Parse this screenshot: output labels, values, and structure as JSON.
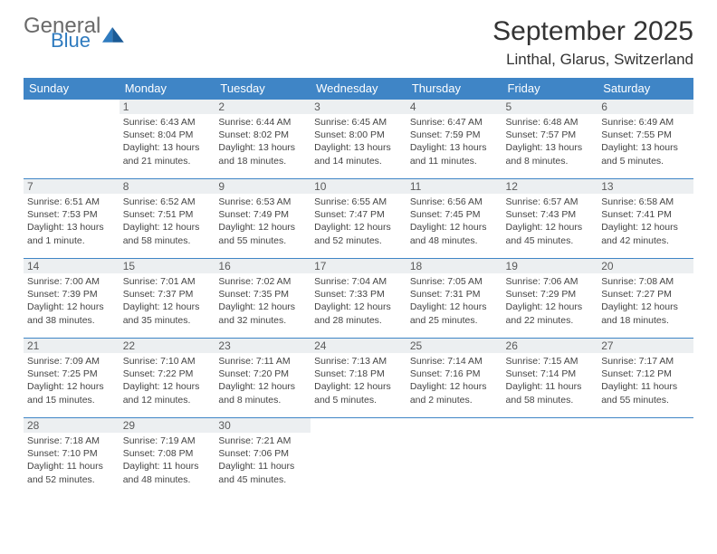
{
  "logo": {
    "text1": "General",
    "text2": "Blue"
  },
  "title": "September 2025",
  "location": "Linthal, Glarus, Switzerland",
  "colors": {
    "header_bg": "#3f85c6",
    "header_text": "#ffffff",
    "daynum_bg": "#eceff1",
    "border": "#3f85c6",
    "logo_gray": "#6a6a6a",
    "logo_blue": "#2f7bbf"
  },
  "weekdays": [
    "Sunday",
    "Monday",
    "Tuesday",
    "Wednesday",
    "Thursday",
    "Friday",
    "Saturday"
  ],
  "weeks": [
    [
      null,
      {
        "n": "1",
        "sr": "6:43 AM",
        "ss": "8:04 PM",
        "dl": "13 hours and 21 minutes."
      },
      {
        "n": "2",
        "sr": "6:44 AM",
        "ss": "8:02 PM",
        "dl": "13 hours and 18 minutes."
      },
      {
        "n": "3",
        "sr": "6:45 AM",
        "ss": "8:00 PM",
        "dl": "13 hours and 14 minutes."
      },
      {
        "n": "4",
        "sr": "6:47 AM",
        "ss": "7:59 PM",
        "dl": "13 hours and 11 minutes."
      },
      {
        "n": "5",
        "sr": "6:48 AM",
        "ss": "7:57 PM",
        "dl": "13 hours and 8 minutes."
      },
      {
        "n": "6",
        "sr": "6:49 AM",
        "ss": "7:55 PM",
        "dl": "13 hours and 5 minutes."
      }
    ],
    [
      {
        "n": "7",
        "sr": "6:51 AM",
        "ss": "7:53 PM",
        "dl": "13 hours and 1 minute."
      },
      {
        "n": "8",
        "sr": "6:52 AM",
        "ss": "7:51 PM",
        "dl": "12 hours and 58 minutes."
      },
      {
        "n": "9",
        "sr": "6:53 AM",
        "ss": "7:49 PM",
        "dl": "12 hours and 55 minutes."
      },
      {
        "n": "10",
        "sr": "6:55 AM",
        "ss": "7:47 PM",
        "dl": "12 hours and 52 minutes."
      },
      {
        "n": "11",
        "sr": "6:56 AM",
        "ss": "7:45 PM",
        "dl": "12 hours and 48 minutes."
      },
      {
        "n": "12",
        "sr": "6:57 AM",
        "ss": "7:43 PM",
        "dl": "12 hours and 45 minutes."
      },
      {
        "n": "13",
        "sr": "6:58 AM",
        "ss": "7:41 PM",
        "dl": "12 hours and 42 minutes."
      }
    ],
    [
      {
        "n": "14",
        "sr": "7:00 AM",
        "ss": "7:39 PM",
        "dl": "12 hours and 38 minutes."
      },
      {
        "n": "15",
        "sr": "7:01 AM",
        "ss": "7:37 PM",
        "dl": "12 hours and 35 minutes."
      },
      {
        "n": "16",
        "sr": "7:02 AM",
        "ss": "7:35 PM",
        "dl": "12 hours and 32 minutes."
      },
      {
        "n": "17",
        "sr": "7:04 AM",
        "ss": "7:33 PM",
        "dl": "12 hours and 28 minutes."
      },
      {
        "n": "18",
        "sr": "7:05 AM",
        "ss": "7:31 PM",
        "dl": "12 hours and 25 minutes."
      },
      {
        "n": "19",
        "sr": "7:06 AM",
        "ss": "7:29 PM",
        "dl": "12 hours and 22 minutes."
      },
      {
        "n": "20",
        "sr": "7:08 AM",
        "ss": "7:27 PM",
        "dl": "12 hours and 18 minutes."
      }
    ],
    [
      {
        "n": "21",
        "sr": "7:09 AM",
        "ss": "7:25 PM",
        "dl": "12 hours and 15 minutes."
      },
      {
        "n": "22",
        "sr": "7:10 AM",
        "ss": "7:22 PM",
        "dl": "12 hours and 12 minutes."
      },
      {
        "n": "23",
        "sr": "7:11 AM",
        "ss": "7:20 PM",
        "dl": "12 hours and 8 minutes."
      },
      {
        "n": "24",
        "sr": "7:13 AM",
        "ss": "7:18 PM",
        "dl": "12 hours and 5 minutes."
      },
      {
        "n": "25",
        "sr": "7:14 AM",
        "ss": "7:16 PM",
        "dl": "12 hours and 2 minutes."
      },
      {
        "n": "26",
        "sr": "7:15 AM",
        "ss": "7:14 PM",
        "dl": "11 hours and 58 minutes."
      },
      {
        "n": "27",
        "sr": "7:17 AM",
        "ss": "7:12 PM",
        "dl": "11 hours and 55 minutes."
      }
    ],
    [
      {
        "n": "28",
        "sr": "7:18 AM",
        "ss": "7:10 PM",
        "dl": "11 hours and 52 minutes."
      },
      {
        "n": "29",
        "sr": "7:19 AM",
        "ss": "7:08 PM",
        "dl": "11 hours and 48 minutes."
      },
      {
        "n": "30",
        "sr": "7:21 AM",
        "ss": "7:06 PM",
        "dl": "11 hours and 45 minutes."
      },
      null,
      null,
      null,
      null
    ]
  ],
  "labels": {
    "sunrise": "Sunrise:",
    "sunset": "Sunset:",
    "daylight": "Daylight:"
  }
}
